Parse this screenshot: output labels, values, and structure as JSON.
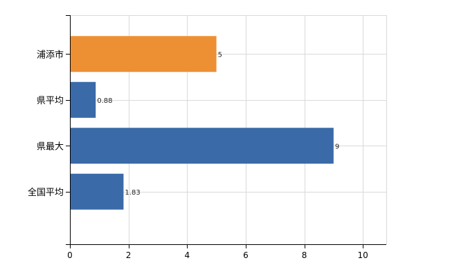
{
  "chart_data": {
    "type": "bar",
    "orientation": "horizontal",
    "categories": [
      "浦添市",
      "県平均",
      "県最大",
      "全国平均"
    ],
    "values": [
      5,
      0.88,
      9,
      1.83
    ],
    "value_labels": [
      "5",
      "0.88",
      "9",
      "1.83"
    ],
    "bar_colors": [
      "#ed8f33",
      "#3a6aa8",
      "#3a6aa8",
      "#3a6aa8"
    ],
    "x_ticks": [
      0,
      2,
      4,
      6,
      8,
      10
    ],
    "xlim": [
      0,
      10.8
    ],
    "grid": true,
    "title": "",
    "xlabel": "",
    "ylabel": ""
  }
}
